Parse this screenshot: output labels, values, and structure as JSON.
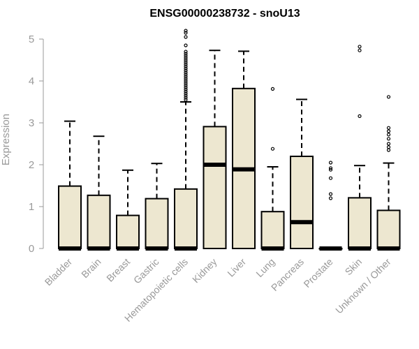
{
  "chart_data": {
    "type": "boxplot",
    "title": "ENSG00000238732 - snoU13",
    "xlabel": "",
    "ylabel": "Expression",
    "ylim": [
      0,
      5.2
    ],
    "yticks": [
      0,
      1,
      2,
      3,
      4,
      5
    ],
    "grid": false,
    "box_color": "#EDE7D0",
    "outline_color": "#000000",
    "axis_text_color": "#999999",
    "categories": [
      "Bladder",
      "Brain",
      "Breast",
      "Gastric",
      "Hematopoietic cells",
      "Kidney",
      "Liver",
      "Lung",
      "Pancreas",
      "Prostate",
      "Skin",
      "Unknown / Other"
    ],
    "boxes": [
      {
        "category": "Bladder",
        "q1": 0,
        "median": 0,
        "q3": 1.49,
        "whisker_low": 0,
        "whisker_high": 3.04,
        "outliers": []
      },
      {
        "category": "Brain",
        "q1": 0,
        "median": 0,
        "q3": 1.27,
        "whisker_low": 0,
        "whisker_high": 2.68,
        "outliers": []
      },
      {
        "category": "Breast",
        "q1": 0,
        "median": 0,
        "q3": 0.79,
        "whisker_low": 0,
        "whisker_high": 1.87,
        "outliers": []
      },
      {
        "category": "Gastric",
        "q1": 0,
        "median": 0,
        "q3": 1.19,
        "whisker_low": 0,
        "whisker_high": 2.03,
        "outliers": []
      },
      {
        "category": "Hematopoietic cells",
        "q1": 0,
        "median": 0,
        "q3": 1.42,
        "whisker_low": 0,
        "whisker_high": 3.5,
        "outliers": [
          3.55,
          3.6,
          3.65,
          3.7,
          3.75,
          3.8,
          3.85,
          3.9,
          3.95,
          4.0,
          4.05,
          4.1,
          4.15,
          4.2,
          4.25,
          4.3,
          4.35,
          4.4,
          4.45,
          4.5,
          4.55,
          4.6,
          4.65,
          4.7,
          4.85,
          5.05,
          5.15,
          5.2
        ]
      },
      {
        "category": "Kidney",
        "q1": 0,
        "median": 2.0,
        "q3": 2.91,
        "whisker_low": 0,
        "whisker_high": 4.73,
        "outliers": []
      },
      {
        "category": "Liver",
        "q1": 0,
        "median": 1.89,
        "q3": 3.82,
        "whisker_low": 0,
        "whisker_high": 4.71,
        "outliers": []
      },
      {
        "category": "Lung",
        "q1": 0,
        "median": 0,
        "q3": 0.88,
        "whisker_low": 0,
        "whisker_high": 1.95,
        "outliers": [
          2.38,
          3.81
        ]
      },
      {
        "category": "Pancreas",
        "q1": 0,
        "median": 0.63,
        "q3": 2.2,
        "whisker_low": 0,
        "whisker_high": 3.56,
        "outliers": []
      },
      {
        "category": "Prostate",
        "q1": 0,
        "median": 0,
        "q3": 0,
        "whisker_low": 0,
        "whisker_high": 0,
        "outliers": [
          1.2,
          1.3,
          1.68,
          1.88,
          1.92,
          2.05
        ]
      },
      {
        "category": "Skin",
        "q1": 0,
        "median": 0,
        "q3": 1.21,
        "whisker_low": 0,
        "whisker_high": 1.98,
        "outliers": [
          3.16,
          4.73,
          4.82
        ]
      },
      {
        "category": "Unknown / Other",
        "q1": 0,
        "median": 0,
        "q3": 0.91,
        "whisker_low": 0,
        "whisker_high": 2.04,
        "outliers": [
          2.35,
          2.42,
          2.5,
          2.62,
          2.72,
          2.8,
          2.88,
          3.62
        ]
      }
    ]
  }
}
